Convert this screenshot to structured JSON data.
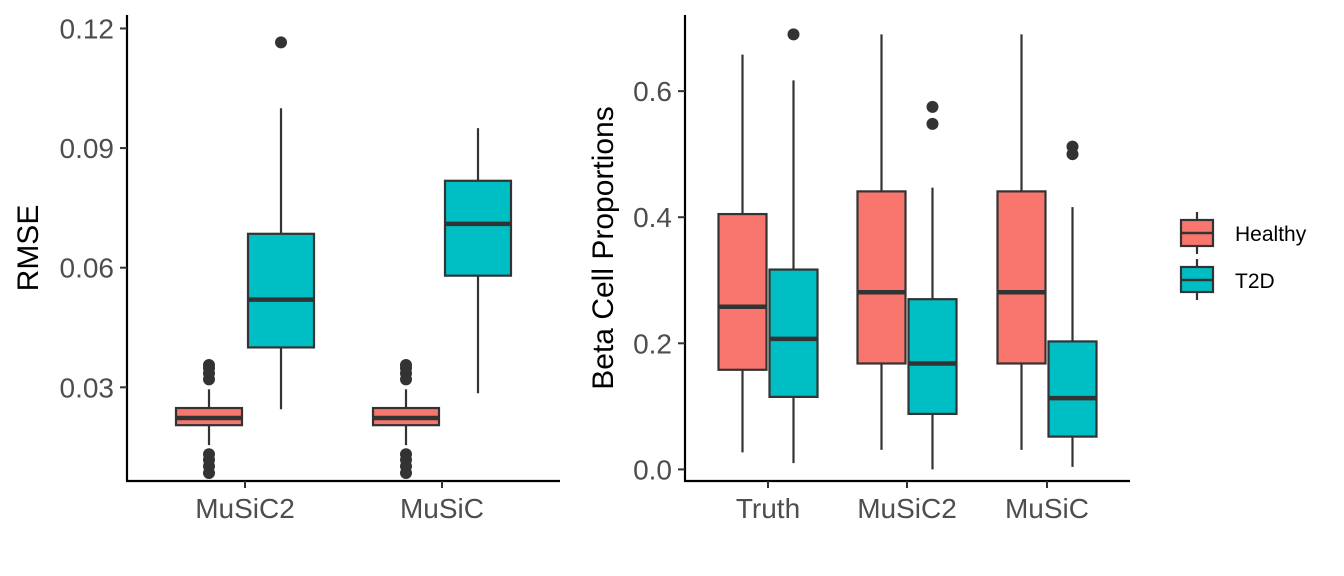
{
  "colors": {
    "Healthy": "#F8766D",
    "T2D": "#00BFC4",
    "ink": "#333333"
  },
  "chart_data": [
    {
      "type": "box",
      "title": "",
      "xlabel": "",
      "ylabel": "RMSE",
      "ylim": [
        0.0065,
        0.122
      ],
      "y_ticks": [
        0.03,
        0.06,
        0.09,
        0.12
      ],
      "y_tick_labels": [
        "0.03",
        "0.06",
        "0.09",
        "0.12"
      ],
      "categories": [
        "MuSiC2",
        "MuSiC"
      ],
      "series": [
        {
          "name": "Healthy",
          "boxes": [
            {
              "category": "MuSiC2",
              "whisker_low": 0.0155,
              "q1": 0.0205,
              "median": 0.0223,
              "q3": 0.0248,
              "whisker_high": 0.0295,
              "outliers": [
                0.0085,
                0.0102,
                0.0118,
                0.0132,
                0.032,
                0.0335,
                0.0348,
                0.0356
              ]
            },
            {
              "category": "MuSiC",
              "whisker_low": 0.0155,
              "q1": 0.0205,
              "median": 0.0223,
              "q3": 0.0248,
              "whisker_high": 0.0295,
              "outliers": [
                0.0085,
                0.0102,
                0.0118,
                0.0132,
                0.032,
                0.0335,
                0.0348,
                0.0356
              ]
            }
          ]
        },
        {
          "name": "T2D",
          "boxes": [
            {
              "category": "MuSiC2",
              "whisker_low": 0.0245,
              "q1": 0.04,
              "median": 0.052,
              "q3": 0.0685,
              "whisker_high": 0.1,
              "outliers": [
                0.1165
              ]
            },
            {
              "category": "MuSiC",
              "whisker_low": 0.0285,
              "q1": 0.058,
              "median": 0.071,
              "q3": 0.0818,
              "whisker_high": 0.095,
              "outliers": []
            }
          ]
        }
      ]
    },
    {
      "type": "box",
      "title": "",
      "xlabel": "",
      "ylabel": "Beta Cell Proportions",
      "ylim": [
        -0.02,
        0.72
      ],
      "y_ticks": [
        0.0,
        0.2,
        0.4,
        0.6
      ],
      "y_tick_labels": [
        "0.0",
        "0.2",
        "0.4",
        "0.6"
      ],
      "categories": [
        "Truth",
        "MuSiC2",
        "MuSiC"
      ],
      "series": [
        {
          "name": "Healthy",
          "boxes": [
            {
              "category": "Truth",
              "whisker_low": 0.027,
              "q1": 0.158,
              "median": 0.258,
              "q3": 0.405,
              "whisker_high": 0.658,
              "outliers": []
            },
            {
              "category": "MuSiC2",
              "whisker_low": 0.031,
              "q1": 0.168,
              "median": 0.281,
              "q3": 0.441,
              "whisker_high": 0.69,
              "outliers": []
            },
            {
              "category": "MuSiC",
              "whisker_low": 0.031,
              "q1": 0.168,
              "median": 0.281,
              "q3": 0.441,
              "whisker_high": 0.69,
              "outliers": []
            }
          ]
        },
        {
          "name": "T2D",
          "boxes": [
            {
              "category": "Truth",
              "whisker_low": 0.01,
              "q1": 0.115,
              "median": 0.207,
              "q3": 0.317,
              "whisker_high": 0.617,
              "outliers": [
                0.69
              ]
            },
            {
              "category": "MuSiC2",
              "whisker_low": 0.0,
              "q1": 0.088,
              "median": 0.168,
              "q3": 0.27,
              "whisker_high": 0.447,
              "outliers": [
                0.548,
                0.575
              ]
            },
            {
              "category": "MuSiC",
              "whisker_low": 0.004,
              "q1": 0.052,
              "median": 0.113,
              "q3": 0.203,
              "whisker_high": 0.416,
              "outliers": [
                0.5,
                0.512
              ]
            }
          ]
        }
      ]
    }
  ],
  "legend": {
    "items": [
      "Healthy",
      "T2D"
    ],
    "position": "right"
  }
}
